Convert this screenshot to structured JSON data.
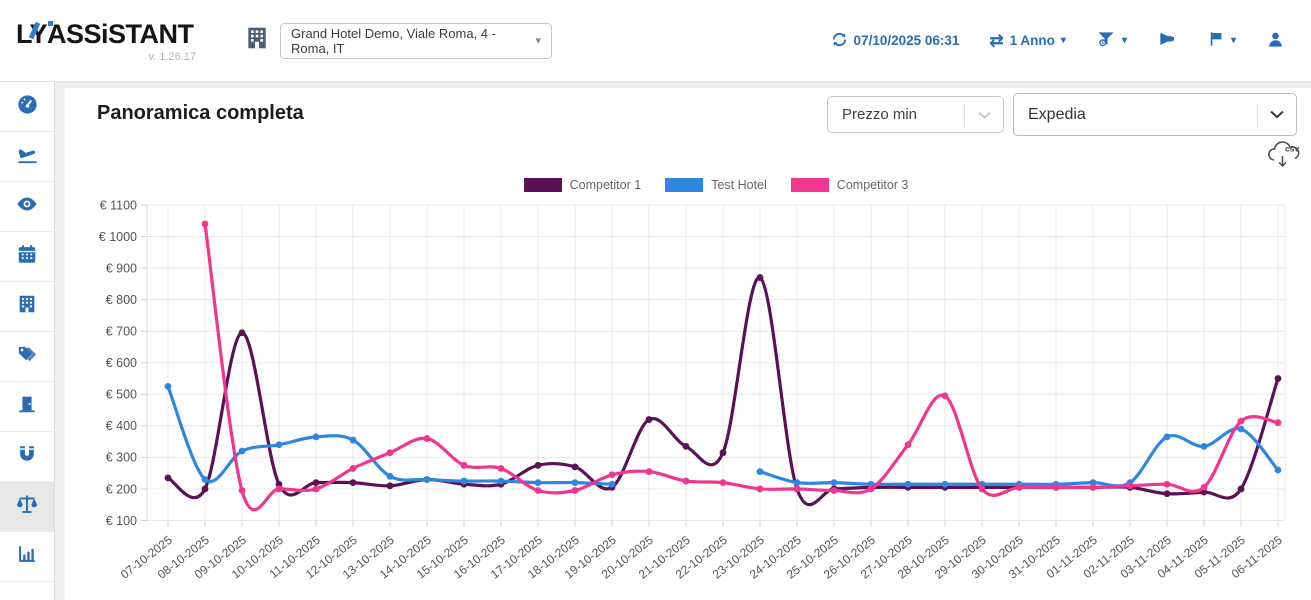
{
  "header": {
    "logo_l": "L",
    "logo_y": "Y",
    "logo_rest": "ASSiSTANT",
    "version": "v. 1.26.17",
    "hotel_selector": {
      "value": "Grand Hotel Demo, Viale Roma, 4 - Roma, IT"
    },
    "last_update": "07/10/2025 06:31",
    "period_selector": {
      "value": "1 Anno"
    },
    "accent_color": "#2a6db6"
  },
  "sidebar": {
    "items": [
      {
        "icon": "gauge-icon",
        "active": false
      },
      {
        "icon": "plane-landing-icon",
        "active": false
      },
      {
        "icon": "eye-icon",
        "active": false
      },
      {
        "icon": "calendar-icon",
        "active": false
      },
      {
        "icon": "hotel-building-icon",
        "active": false
      },
      {
        "icon": "price-tags-icon",
        "active": false
      },
      {
        "icon": "door-icon",
        "active": false
      },
      {
        "icon": "magnet-icon",
        "active": false
      },
      {
        "icon": "scales-icon",
        "active": true
      },
      {
        "icon": "bar-chart-icon",
        "active": false
      }
    ]
  },
  "main": {
    "title": "Panoramica completa",
    "filters": {
      "price_type": "Prezzo min",
      "channel": "Expedia"
    },
    "export_label": "csv"
  },
  "chart_data": {
    "type": "line",
    "title": "",
    "xlabel": "",
    "ylabel": "",
    "y_prefix": "€ ",
    "ylim": [
      100,
      1100
    ],
    "y_ticks": [
      100,
      200,
      300,
      400,
      500,
      600,
      700,
      800,
      900,
      1000,
      1100
    ],
    "grid": true,
    "legend_position": "top",
    "x_categories": [
      "07-10-2025",
      "08-10-2025",
      "09-10-2025",
      "10-10-2025",
      "11-10-2025",
      "12-10-2025",
      "13-10-2025",
      "14-10-2025",
      "15-10-2025",
      "16-10-2025",
      "17-10-2025",
      "18-10-2025",
      "19-10-2025",
      "20-10-2025",
      "21-10-2025",
      "22-10-2025",
      "23-10-2025",
      "24-10-2025",
      "25-10-2025",
      "26-10-2025",
      "27-10-2025",
      "28-10-2025",
      "29-10-2025",
      "30-10-2025",
      "31-10-2025",
      "01-11-2025",
      "02-11-2025",
      "03-11-2025",
      "04-11-2025",
      "05-11-2025",
      "06-11-2025"
    ],
    "series": [
      {
        "name": "Competitor 1",
        "color": "#5b1155",
        "values": [
          235,
          200,
          695,
          215,
          220,
          220,
          210,
          230,
          215,
          215,
          275,
          270,
          205,
          420,
          335,
          315,
          870,
          200,
          200,
          205,
          205,
          205,
          205,
          205,
          205,
          205,
          205,
          185,
          190,
          200,
          550
        ]
      },
      {
        "name": "Test Hotel",
        "color": "#2e86de",
        "values": [
          525,
          230,
          320,
          340,
          365,
          355,
          240,
          230,
          225,
          225,
          220,
          220,
          215,
          null,
          null,
          null,
          255,
          220,
          220,
          215,
          215,
          215,
          215,
          215,
          215,
          220,
          220,
          365,
          335,
          390,
          260
        ]
      },
      {
        "name": "Competitor 3",
        "color": "#f0368f",
        "values": [
          null,
          1040,
          195,
          200,
          200,
          265,
          315,
          360,
          275,
          265,
          195,
          195,
          245,
          255,
          225,
          220,
          200,
          200,
          195,
          200,
          340,
          495,
          200,
          205,
          205,
          205,
          210,
          215,
          205,
          415,
          410
        ]
      }
    ]
  }
}
